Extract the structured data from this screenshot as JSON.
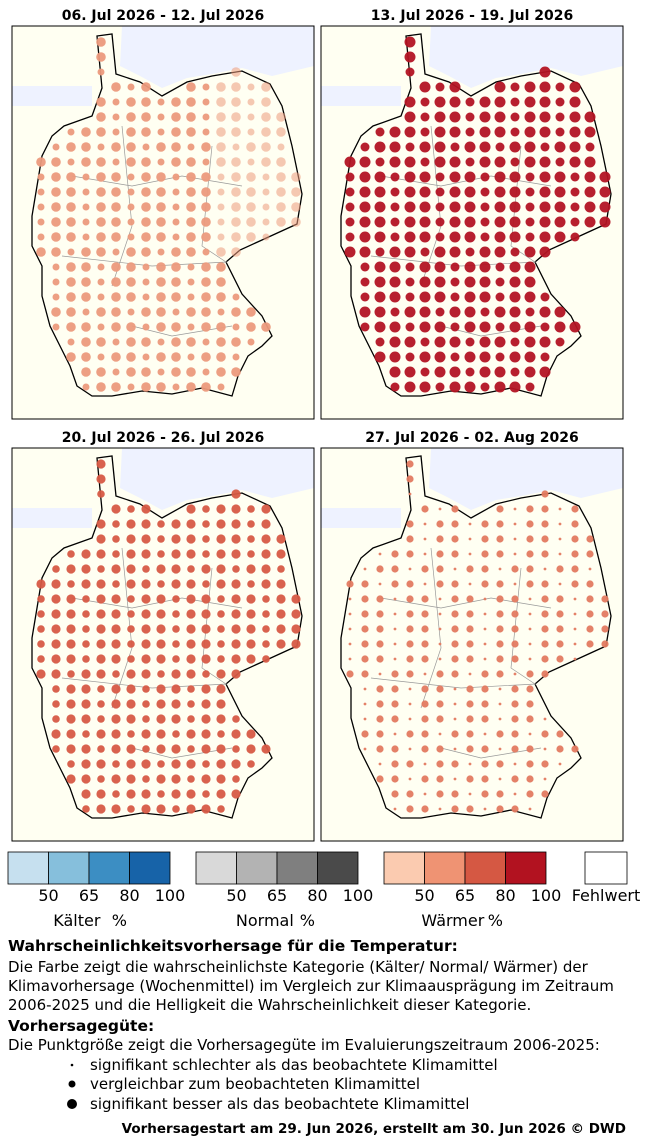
{
  "panels": [
    {
      "title": "06. Jul 2026 - 12. Jul 2026",
      "color": "#ec9a7c"
    },
    {
      "title": "13. Jul 2026 - 19. Jul 2026",
      "color": "#b31423"
    },
    {
      "title": "20. Jul 2026 - 26. Jul 2026",
      "color": "#d75a45"
    },
    {
      "title": "27. Jul 2026 - 02. Aug 2026",
      "color": "#e37a60"
    }
  ],
  "legend": {
    "groups": [
      {
        "label": "Kälter",
        "unit": "%",
        "colors": [
          "#c6e0ef",
          "#86bfdc",
          "#3c8ec3",
          "#1763a8"
        ],
        "ticks": [
          "50",
          "65",
          "80",
          "100"
        ]
      },
      {
        "label": "Normal",
        "unit": "%",
        "colors": [
          "#d9d9d9",
          "#b3b3b3",
          "#7f7f7f",
          "#4a4a4a"
        ],
        "ticks": [
          "50",
          "65",
          "80",
          "100"
        ]
      },
      {
        "label": "Wärmer",
        "unit": "%",
        "colors": [
          "#fbcbb0",
          "#ef9373",
          "#d55843",
          "#b21220"
        ],
        "ticks": [
          "50",
          "65",
          "80",
          "100"
        ]
      }
    ],
    "missing": "Fehlwert"
  },
  "text": {
    "heading1": "Wahrscheinlichkeitsvorhersage für die Temperatur:",
    "para1": [
      "Die Farbe zeigt die wahrscheinlichste Kategorie (Kälter/ Normal/ Wärmer) der",
      "Klimavorhersage (Wochenmittel) im Vergleich zur Klimaausprägung im Zeitraum",
      "2006-2025 und die Helligkeit die Wahrscheinlichkeit dieser Kategorie."
    ],
    "heading2": "Vorhersagegüte:",
    "para2": "Die Punktgröße zeigt die Vorhersagegüte im Evaluierungszeitraum 2006-2025:",
    "items": [
      "signifikant schlechter als das beobachtete Klimamittel",
      "vergleichbar zum beobachteten Klimamittel",
      "signifikant besser als das beobachtete Klimamittel"
    ],
    "footer": "Vorhersagestart am 29. Jun 2026, erstellt am 30. Jun 2026 © DWD"
  }
}
